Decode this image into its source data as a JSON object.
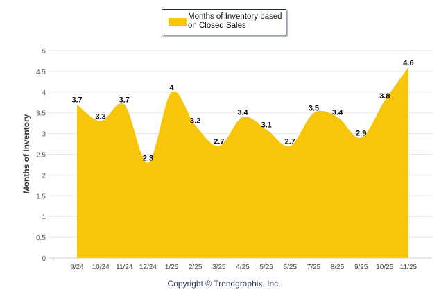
{
  "chart_data": {
    "type": "area",
    "title": "",
    "xlabel": "",
    "ylabel": "Months of Inventory",
    "categories": [
      "9/24",
      "10/24",
      "11/24",
      "12/24",
      "1/25",
      "2/25",
      "3/25",
      "4/25",
      "5/25",
      "6/25",
      "7/25",
      "8/25",
      "9/25",
      "10/25",
      "11/25"
    ],
    "series": [
      {
        "name": "Months of Inventory based on Closed Sales",
        "values": [
          3.7,
          3.3,
          3.7,
          2.3,
          4,
          3.2,
          2.7,
          3.4,
          3.1,
          2.7,
          3.5,
          3.4,
          2.9,
          3.8,
          4.6
        ],
        "color": "#f7c50a"
      }
    ],
    "data_labels": [
      "3.7",
      "3.3",
      "3.7",
      "2.3",
      "4",
      "3.2",
      "2.7",
      "3.4",
      "3.1",
      "2.7",
      "3.5",
      "3.4",
      "2.9",
      "3.8",
      "4.6"
    ],
    "ylim": [
      0,
      5
    ],
    "yticks": [
      "0",
      "0.5",
      "1",
      "1.5",
      "2",
      "2.5",
      "3",
      "3.5",
      "4",
      "4.5",
      "5"
    ],
    "grid": true,
    "legend": "top-center"
  },
  "legend_label": "Months of Inventory based on Closed Sales",
  "copyright": "Copyright © Trendgraphix, Inc."
}
